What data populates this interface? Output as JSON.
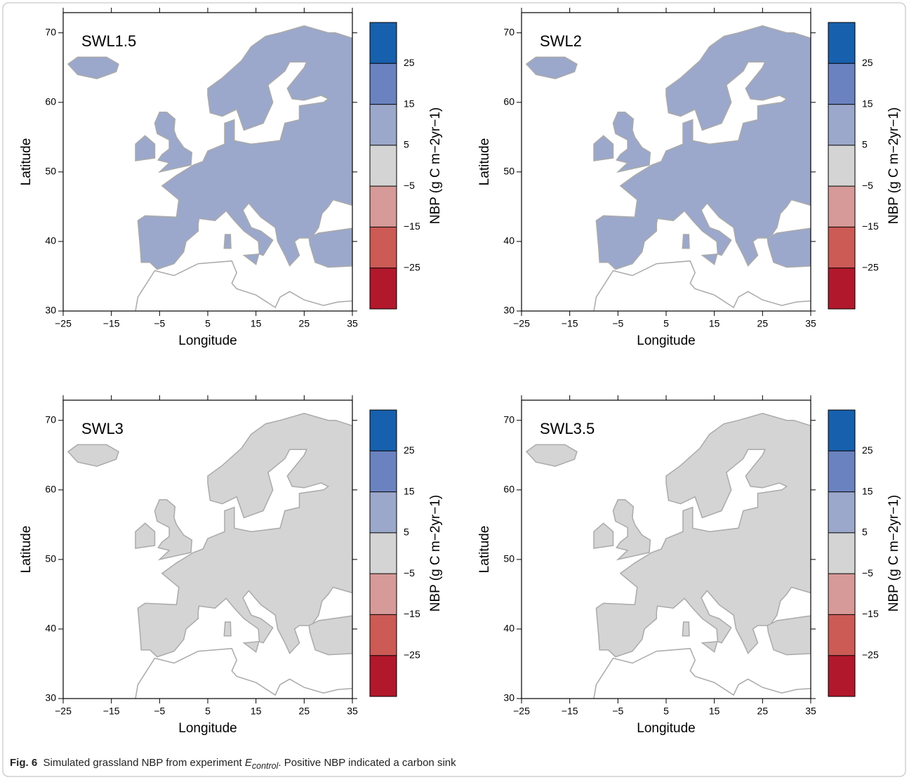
{
  "chart_data": [
    {
      "type": "map",
      "title": "SWL1.5",
      "x_label": "Longitude",
      "y_label": "Latitude",
      "xlim": [
        -25,
        35
      ],
      "ylim": [
        30,
        72.9
      ],
      "xticks": [
        {
          "value": -25,
          "label": "−25"
        },
        {
          "value": -15,
          "label": "−15"
        },
        {
          "value": -5,
          "label": "−5"
        },
        5,
        15,
        25,
        35
      ],
      "yticks": [
        30,
        40,
        50,
        60,
        70
      ],
      "colorbar": {
        "label": "NBP (g C m−2yr−1)",
        "clim": [
          -35,
          35
        ],
        "levels": [
          -35,
          -25,
          -15,
          -5,
          5,
          15,
          25,
          35
        ],
        "colors": [
          "#b2182b",
          "#cc5a55",
          "#d69a98",
          "#d4d4d4",
          "#9ba8cb",
          "#6a82bf",
          "#1760ad"
        ],
        "ticks": [
          {
            "value": -25,
            "label": "−25"
          },
          {
            "value": -15,
            "label": "−15"
          },
          {
            "value": -5,
            "label": "−5"
          },
          5,
          15,
          25
        ]
      }
    },
    {
      "type": "map",
      "title": "SWL2",
      "x_label": "Longitude",
      "y_label": "Latitude",
      "xlim": [
        -25,
        35
      ],
      "ylim": [
        30,
        72.9
      ],
      "xticks": [
        {
          "value": -25,
          "label": "−25"
        },
        {
          "value": -15,
          "label": "−15"
        },
        {
          "value": -5,
          "label": "−5"
        },
        5,
        15,
        25,
        35
      ],
      "yticks": [
        30,
        40,
        50,
        60,
        70
      ],
      "colorbar": {
        "label": "NBP (g C m−2yr−1)",
        "clim": [
          -35,
          35
        ],
        "levels": [
          -35,
          -25,
          -15,
          -5,
          5,
          15,
          25,
          35
        ],
        "colors": [
          "#b2182b",
          "#cc5a55",
          "#d69a98",
          "#d4d4d4",
          "#9ba8cb",
          "#6a82bf",
          "#1760ad"
        ],
        "ticks": [
          {
            "value": -25,
            "label": "−25"
          },
          {
            "value": -15,
            "label": "−15"
          },
          {
            "value": -5,
            "label": "−5"
          },
          5,
          15,
          25
        ]
      }
    },
    {
      "type": "map",
      "title": "SWL3",
      "x_label": "Longitude",
      "y_label": "Latitude",
      "xlim": [
        -25,
        35
      ],
      "ylim": [
        30,
        72.9
      ],
      "xticks": [
        {
          "value": -25,
          "label": "−25"
        },
        {
          "value": -15,
          "label": "−15"
        },
        {
          "value": -5,
          "label": "−5"
        },
        5,
        15,
        25,
        35
      ],
      "yticks": [
        30,
        40,
        50,
        60,
        70
      ],
      "colorbar": {
        "label": "NBP (g C m−2yr−1)",
        "clim": [
          -35,
          35
        ],
        "levels": [
          -35,
          -25,
          -15,
          -5,
          5,
          15,
          25,
          35
        ],
        "colors": [
          "#b2182b",
          "#cc5a55",
          "#d69a98",
          "#d4d4d4",
          "#9ba8cb",
          "#6a82bf",
          "#1760ad"
        ],
        "ticks": [
          {
            "value": -25,
            "label": "−25"
          },
          {
            "value": -15,
            "label": "−15"
          },
          {
            "value": -5,
            "label": "−5"
          },
          5,
          15,
          25
        ]
      }
    },
    {
      "type": "map",
      "title": "SWL3.5",
      "x_label": "Longitude",
      "y_label": "Latitude",
      "xlim": [
        -25,
        35
      ],
      "ylim": [
        30,
        72.9
      ],
      "xticks": [
        {
          "value": -25,
          "label": "−25"
        },
        {
          "value": -15,
          "label": "−15"
        },
        {
          "value": -5,
          "label": "−5"
        },
        5,
        15,
        25,
        35
      ],
      "yticks": [
        30,
        40,
        50,
        60,
        70
      ],
      "colorbar": {
        "label": "NBP (g C m−2yr−1)",
        "clim": [
          -35,
          35
        ],
        "levels": [
          -35,
          -25,
          -15,
          -5,
          5,
          15,
          25,
          35
        ],
        "colors": [
          "#b2182b",
          "#cc5a55",
          "#d69a98",
          "#d4d4d4",
          "#9ba8cb",
          "#6a82bf",
          "#1760ad"
        ],
        "ticks": [
          {
            "value": -25,
            "label": "−25"
          },
          {
            "value": -15,
            "label": "−15"
          },
          {
            "value": -5,
            "label": "−5"
          },
          5,
          15,
          25
        ]
      }
    }
  ],
  "caption": {
    "label": "Fig. 6",
    "text": "Simulated grassland NBP from experiment ",
    "symbol": "E",
    "subscript": "control",
    "text_end": ". Positive NBP indicated a carbon sink"
  }
}
